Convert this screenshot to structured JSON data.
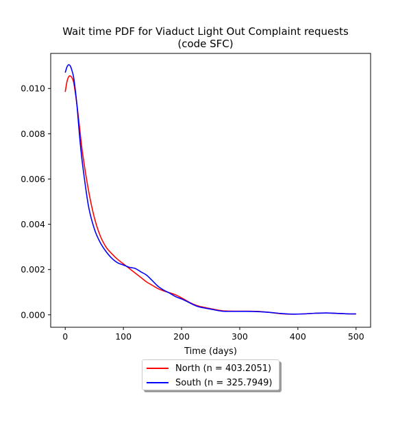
{
  "chart_data": {
    "type": "line",
    "title_line1": "Wait time PDF for Viaduct Light Out Complaint  requests",
    "title_line2": "(code SFC)",
    "xlabel": "Time (days)",
    "ylabel": "",
    "xlim": [
      -25,
      525
    ],
    "ylim": [
      -0.00055,
      0.01155
    ],
    "x_ticks": [
      0,
      100,
      200,
      300,
      400,
      500
    ],
    "y_ticks": [
      0.0,
      0.002,
      0.004,
      0.006,
      0.008,
      0.01
    ],
    "y_tick_labels": [
      "0.000",
      "0.002",
      "0.004",
      "0.006",
      "0.008",
      "0.010"
    ],
    "legend_position": "below",
    "series": [
      {
        "name": "North (n = 403.2051)",
        "color": "#ff0000",
        "x": [
          0,
          3,
          6,
          9,
          12,
          15,
          20,
          25,
          30,
          40,
          50,
          60,
          70,
          80,
          90,
          100,
          110,
          120,
          130,
          140,
          150,
          160,
          170,
          180,
          190,
          200,
          210,
          220,
          230,
          250,
          270,
          290,
          310,
          330,
          350,
          370,
          390,
          410,
          430,
          450,
          470,
          490,
          500
        ],
        "y": [
          0.00985,
          0.0103,
          0.01052,
          0.01055,
          0.01045,
          0.0102,
          0.0093,
          0.0082,
          0.0071,
          0.0055,
          0.0043,
          0.0035,
          0.003,
          0.0027,
          0.00245,
          0.00225,
          0.00205,
          0.00185,
          0.00165,
          0.00145,
          0.0013,
          0.00115,
          0.00105,
          0.00097,
          0.00088,
          0.00075,
          0.0006,
          0.00047,
          0.00038,
          0.00027,
          0.00018,
          0.00016,
          0.00016,
          0.00015,
          0.00011,
          5e-05,
          3e-05,
          4e-05,
          7e-05,
          8e-05,
          6e-05,
          4e-05,
          4e-05
        ]
      },
      {
        "name": "South (n = 325.7949)",
        "color": "#0000ff",
        "x": [
          0,
          3,
          6,
          9,
          12,
          15,
          20,
          25,
          30,
          40,
          50,
          60,
          70,
          80,
          90,
          100,
          110,
          120,
          130,
          140,
          150,
          160,
          170,
          180,
          190,
          200,
          210,
          220,
          230,
          250,
          270,
          290,
          310,
          330,
          350,
          370,
          390,
          410,
          430,
          450,
          470,
          490,
          500
        ],
        "y": [
          0.0107,
          0.01095,
          0.01105,
          0.01098,
          0.01075,
          0.0104,
          0.0093,
          0.0078,
          0.0066,
          0.0048,
          0.0038,
          0.0032,
          0.0028,
          0.0025,
          0.0023,
          0.0022,
          0.0021,
          0.00205,
          0.0019,
          0.00175,
          0.0015,
          0.00125,
          0.00108,
          0.00095,
          0.0008,
          0.0007,
          0.00058,
          0.00045,
          0.00035,
          0.00025,
          0.00016,
          0.00015,
          0.00015,
          0.00014,
          0.00011,
          6e-05,
          3e-05,
          4e-05,
          7e-05,
          8e-05,
          6e-05,
          4e-05,
          4e-05
        ]
      }
    ]
  }
}
